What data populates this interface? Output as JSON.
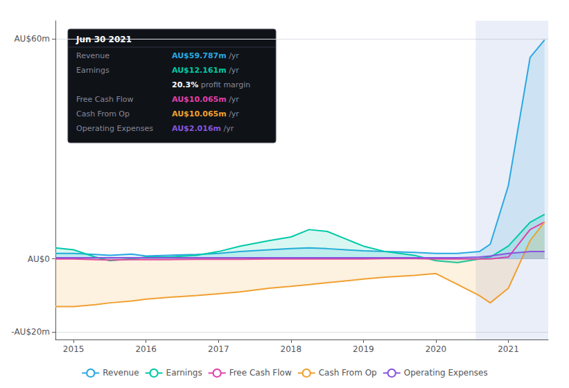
{
  "chart_data": {
    "type": "line",
    "x": [
      2014.75,
      2015.0,
      2015.3,
      2015.5,
      2015.8,
      2016.0,
      2016.3,
      2016.7,
      2017.0,
      2017.3,
      2017.7,
      2018.0,
      2018.25,
      2018.5,
      2018.75,
      2019.0,
      2019.3,
      2019.7,
      2020.0,
      2020.3,
      2020.6,
      2020.75,
      2021.0,
      2021.3,
      2021.5
    ],
    "series": [
      {
        "name": "Revenue",
        "color": "#29a8e0",
        "type": "area",
        "values": [
          1.5,
          1.5,
          1.2,
          1.0,
          1.3,
          0.8,
          1.0,
          1.2,
          1.5,
          2.0,
          2.5,
          2.8,
          3.0,
          2.8,
          2.5,
          2.2,
          2.0,
          1.8,
          1.5,
          1.5,
          2.0,
          4.0,
          20.0,
          55.0,
          59.787
        ]
      },
      {
        "name": "Earnings",
        "color": "#00c9a7",
        "type": "area",
        "values": [
          3.0,
          2.5,
          0.5,
          -0.5,
          0.0,
          0.5,
          0.5,
          1.0,
          2.0,
          3.5,
          5.0,
          6.0,
          8.0,
          7.5,
          5.5,
          3.5,
          2.0,
          1.0,
          -0.5,
          -1.0,
          0.0,
          0.5,
          3.5,
          10.0,
          12.161
        ]
      },
      {
        "name": "Free Cash Flow",
        "color": "#e040aa",
        "type": "line",
        "values": [
          0.0,
          0.0,
          -0.2,
          -0.3,
          -0.2,
          -0.2,
          -0.2,
          -0.1,
          -0.1,
          -0.1,
          0.0,
          0.0,
          0.0,
          0.0,
          0.0,
          0.0,
          0.1,
          0.1,
          0.0,
          0.0,
          0.0,
          0.0,
          0.5,
          8.0,
          10.065
        ]
      },
      {
        "name": "Cash From Op",
        "color": "#f0a030",
        "type": "area",
        "values": [
          -13.0,
          -13.0,
          -12.5,
          -12.0,
          -11.5,
          -11.0,
          -10.5,
          -10.0,
          -9.5,
          -9.0,
          -8.0,
          -7.5,
          -7.0,
          -6.5,
          -6.0,
          -5.5,
          -5.0,
          -4.5,
          -4.0,
          -7.0,
          -10.0,
          -12.0,
          -8.0,
          5.0,
          10.065
        ]
      },
      {
        "name": "Operating Expenses",
        "color": "#8855dd",
        "type": "area",
        "values": [
          0.3,
          0.3,
          0.3,
          0.3,
          0.3,
          0.3,
          0.3,
          0.3,
          0.3,
          0.3,
          0.3,
          0.3,
          0.3,
          0.3,
          0.3,
          0.3,
          0.3,
          0.3,
          0.3,
          0.3,
          0.5,
          0.8,
          1.5,
          2.0,
          2.016
        ]
      }
    ],
    "xlim": [
      2014.75,
      2021.55
    ],
    "ylim": [
      -22,
      65
    ],
    "xticks": [
      2015,
      2016,
      2017,
      2018,
      2019,
      2020,
      2021
    ],
    "yticks": [
      {
        "value": -20,
        "label": "-AU$20m"
      },
      {
        "value": 0,
        "label": "AU$0"
      },
      {
        "value": 60,
        "label": "AU$60m"
      }
    ],
    "grid": true,
    "legend": "bottom",
    "highlight_range": [
      2020.55,
      2021.55
    ],
    "annotations": [
      {
        "title": "Jun 30 2021",
        "rows": [
          {
            "label": "Revenue",
            "value": "AU$59.787m",
            "color": "#29a8e0",
            "suffix": " /yr"
          },
          {
            "label": "Earnings",
            "value": "AU$12.161m",
            "color": "#00c9a7",
            "suffix": " /yr"
          },
          {
            "value": "20.3%",
            "color": "#ffffff",
            "suffix": " profit margin"
          },
          {
            "label": "Free Cash Flow",
            "value": "AU$10.065m",
            "color": "#e040aa",
            "suffix": " /yr"
          },
          {
            "label": "Cash From Op",
            "value": "AU$10.065m",
            "color": "#f0a030",
            "suffix": " /yr"
          },
          {
            "label": "Operating Expenses",
            "value": "AU$2.016m",
            "color": "#8855dd",
            "suffix": " /yr"
          }
        ]
      }
    ]
  }
}
